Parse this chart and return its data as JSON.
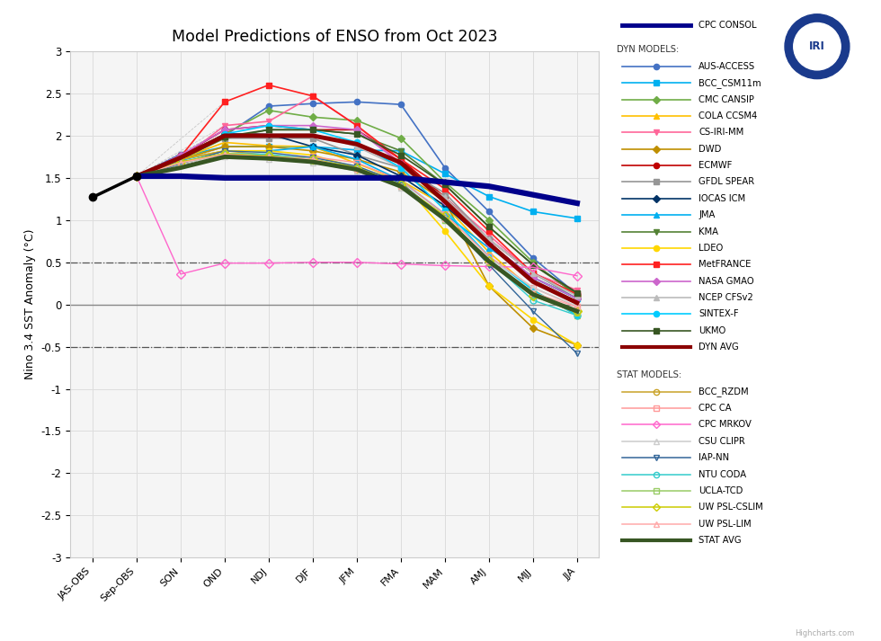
{
  "title": "Model Predictions of ENSO from Oct 2023",
  "ylabel": "Nino 3.4 SST Anomaly (°C)",
  "xtick_labels": [
    "JAS-OBS",
    "Sep-OBS",
    "SON",
    "OND",
    "NDJ",
    "DJF",
    "JFM",
    "FMA",
    "MAM",
    "AMJ",
    "MJJ",
    "JJA"
  ],
  "ylim": [
    -3,
    3
  ],
  "yticks": [
    -3,
    -2.5,
    -2,
    -1.5,
    -1,
    -0.5,
    0,
    0.5,
    1,
    1.5,
    2,
    2.5,
    3
  ],
  "obs": {
    "x": [
      0,
      1
    ],
    "y": [
      1.27,
      1.52
    ],
    "color": "#000000",
    "linewidth": 2.5,
    "marker": "o",
    "markersize": 6
  },
  "cpc_consol": {
    "color": "#00008b",
    "linewidth": 4.5,
    "x": [
      1,
      2,
      3,
      4,
      5,
      6,
      7,
      8,
      9,
      10,
      11
    ],
    "y": [
      1.52,
      1.52,
      1.5,
      1.5,
      1.5,
      1.5,
      1.5,
      1.45,
      1.4,
      1.3,
      1.2
    ]
  },
  "dyn_models": [
    {
      "name": "AUS-ACCESS",
      "color": "#4472c4",
      "marker": "o",
      "x": [
        1,
        2,
        3,
        4,
        5,
        6,
        7,
        8,
        9,
        10,
        11
      ],
      "y": [
        1.52,
        1.78,
        2.0,
        2.35,
        2.38,
        2.4,
        2.37,
        1.62,
        1.1,
        0.55,
        0.12
      ]
    },
    {
      "name": "BCC_CSM11m",
      "color": "#00b0f0",
      "marker": "s",
      "x": [
        1,
        2,
        3,
        4,
        5,
        6,
        7,
        8,
        9,
        10,
        11
      ],
      "y": [
        1.52,
        1.75,
        1.87,
        1.87,
        1.87,
        1.83,
        1.82,
        1.55,
        1.28,
        1.1,
        1.02
      ]
    },
    {
      "name": "CMC CANSIP",
      "color": "#70ad47",
      "marker": "D",
      "x": [
        1,
        2,
        3,
        4,
        5,
        6,
        7,
        8,
        9,
        10,
        11
      ],
      "y": [
        1.52,
        1.74,
        2.02,
        2.3,
        2.22,
        2.18,
        1.97,
        1.45,
        1.0,
        0.5,
        0.1
      ]
    },
    {
      "name": "COLA CCSM4",
      "color": "#ffc000",
      "marker": "^",
      "x": [
        1,
        2,
        3,
        4,
        5,
        6,
        7,
        8,
        9,
        10,
        11
      ],
      "y": [
        1.52,
        1.73,
        1.92,
        1.88,
        1.87,
        1.67,
        1.47,
        1.17,
        0.62,
        0.17,
        -0.13
      ]
    },
    {
      "name": "CS-IRI-MM",
      "color": "#ff6699",
      "marker": "v",
      "x": [
        1,
        2,
        3,
        4,
        5,
        6,
        7,
        8,
        9,
        10,
        11
      ],
      "y": [
        1.52,
        1.72,
        2.12,
        2.17,
        2.47,
        2.12,
        1.67,
        1.27,
        0.82,
        0.37,
        0.17
      ]
    },
    {
      "name": "DWD",
      "color": "#bf8f00",
      "marker": "D",
      "x": [
        1,
        2,
        3,
        4,
        5,
        6,
        7,
        8,
        9,
        10,
        11
      ],
      "y": [
        1.52,
        1.72,
        1.87,
        1.87,
        1.82,
        1.72,
        1.57,
        1.22,
        0.22,
        -0.28,
        -0.48
      ]
    },
    {
      "name": "ECMWF",
      "color": "#c00000",
      "marker": "o",
      "x": [
        1,
        2,
        3,
        4,
        5,
        6,
        7,
        8,
        9,
        10,
        11
      ],
      "y": [
        1.52,
        1.76,
        2.07,
        2.12,
        2.07,
        2.07,
        1.72,
        1.27,
        0.77,
        0.37,
        0.12
      ]
    },
    {
      "name": "GFDL SPEAR",
      "color": "#969696",
      "marker": "s",
      "x": [
        1,
        2,
        3,
        4,
        5,
        6,
        7,
        8,
        9,
        10,
        11
      ],
      "y": [
        1.52,
        1.73,
        1.97,
        1.97,
        1.97,
        1.77,
        1.62,
        1.32,
        0.77,
        0.37,
        0.07
      ]
    },
    {
      "name": "IOCAS ICM",
      "color": "#003366",
      "marker": "D",
      "x": [
        1,
        2,
        3,
        4,
        5,
        6,
        7,
        8,
        9,
        10,
        11
      ],
      "y": [
        1.52,
        1.73,
        2.02,
        2.02,
        1.87,
        1.77,
        1.52,
        1.17,
        0.72,
        0.32,
        0.07
      ]
    },
    {
      "name": "JMA",
      "color": "#00b0f0",
      "marker": "^",
      "x": [
        1,
        2,
        3,
        4,
        5,
        6,
        7,
        8,
        9,
        10,
        11
      ],
      "y": [
        1.52,
        1.71,
        1.82,
        1.82,
        1.87,
        1.72,
        1.47,
        1.07,
        0.67,
        0.32,
        0.07
      ]
    },
    {
      "name": "KMA",
      "color": "#548235",
      "marker": "v",
      "x": [
        1,
        2,
        3,
        4,
        5,
        6,
        7,
        8,
        9,
        10,
        11
      ],
      "y": [
        1.52,
        1.72,
        1.97,
        2.07,
        2.07,
        2.02,
        1.82,
        1.42,
        0.92,
        0.47,
        0.12
      ]
    },
    {
      "name": "LDEO",
      "color": "#ffd700",
      "marker": "o",
      "x": [
        1,
        2,
        3,
        4,
        5,
        6,
        7,
        8,
        9,
        10,
        11
      ],
      "y": [
        1.52,
        1.72,
        1.82,
        1.82,
        1.77,
        1.62,
        1.47,
        0.87,
        0.22,
        -0.18,
        -0.48
      ]
    },
    {
      "name": "MetFRANCE",
      "color": "#ff2020",
      "marker": "s",
      "x": [
        1,
        2,
        3,
        4,
        5,
        6,
        7,
        8,
        9,
        10,
        11
      ],
      "y": [
        1.52,
        1.75,
        2.4,
        2.6,
        2.47,
        2.12,
        1.72,
        1.37,
        0.87,
        0.37,
        0.12
      ]
    },
    {
      "name": "NASA GMAO",
      "color": "#cc66cc",
      "marker": "D",
      "x": [
        1,
        2,
        3,
        4,
        5,
        6,
        7,
        8,
        9,
        10,
        11
      ],
      "y": [
        1.52,
        1.77,
        2.07,
        2.12,
        2.12,
        2.07,
        1.67,
        1.22,
        0.72,
        0.32,
        0.07
      ]
    },
    {
      "name": "NCEP CFSv2",
      "color": "#bbbbbb",
      "marker": "^",
      "x": [
        1,
        2,
        3,
        4,
        5,
        6,
        7,
        8,
        9,
        10,
        11
      ],
      "y": [
        1.52,
        1.72,
        2.0,
        2.02,
        2.02,
        1.87,
        1.62,
        1.27,
        0.77,
        0.37,
        0.1
      ]
    },
    {
      "name": "SINTEX-F",
      "color": "#00ccff",
      "marker": "o",
      "x": [
        1,
        2,
        3,
        4,
        5,
        6,
        7,
        8,
        9,
        10,
        11
      ],
      "y": [
        1.52,
        1.73,
        2.02,
        2.12,
        2.07,
        1.92,
        1.62,
        1.12,
        0.57,
        0.17,
        -0.13
      ]
    },
    {
      "name": "UKMO",
      "color": "#375623",
      "marker": "s",
      "x": [
        1,
        2,
        3,
        4,
        5,
        6,
        7,
        8,
        9,
        10,
        11
      ],
      "y": [
        1.52,
        1.72,
        1.99,
        2.07,
        2.07,
        2.02,
        1.77,
        1.42,
        0.92,
        0.47,
        0.14
      ]
    },
    {
      "name": "DYN AVG",
      "color": "#8b0000",
      "marker": null,
      "linewidth": 3.5,
      "x": [
        1,
        2,
        3,
        4,
        5,
        6,
        7,
        8,
        9,
        10,
        11
      ],
      "y": [
        1.52,
        1.74,
        2.0,
        2.0,
        2.0,
        1.9,
        1.68,
        1.22,
        0.72,
        0.27,
        0.02
      ]
    }
  ],
  "stat_models": [
    {
      "name": "BCC_RZDM",
      "color": "#c9a227",
      "marker": "o",
      "x": [
        1,
        2,
        3,
        4,
        5,
        6,
        7,
        8,
        9,
        10,
        11
      ],
      "y": [
        1.52,
        1.72,
        1.82,
        1.77,
        1.72,
        1.62,
        1.42,
        1.02,
        0.52,
        0.12,
        -0.08
      ]
    },
    {
      "name": "CPC CA",
      "color": "#ff9999",
      "marker": "s",
      "x": [
        1,
        2,
        3,
        4,
        5,
        6,
        7,
        8,
        9,
        10,
        11
      ],
      "y": [
        1.52,
        1.68,
        1.78,
        1.75,
        1.75,
        1.68,
        1.47,
        1.07,
        0.57,
        0.2,
        -0.03
      ]
    },
    {
      "name": "CPC MRKOV",
      "color": "#ff66cc",
      "marker": "D",
      "x": [
        1,
        2,
        3,
        4,
        5,
        6,
        7,
        8,
        9,
        10,
        11
      ],
      "y": [
        1.52,
        0.36,
        0.49,
        0.49,
        0.5,
        0.5,
        0.48,
        0.46,
        0.45,
        0.44,
        0.34
      ]
    },
    {
      "name": "CSU CLIPR",
      "color": "#cccccc",
      "marker": "^",
      "x": [
        1,
        2,
        3,
        4,
        5,
        6,
        7,
        8,
        9,
        10,
        11
      ],
      "y": [
        1.52,
        1.68,
        1.75,
        1.72,
        1.68,
        1.58,
        1.38,
        1.0,
        0.55,
        0.2,
        -0.02
      ]
    },
    {
      "name": "IAP-NN",
      "color": "#336699",
      "marker": "v",
      "x": [
        1,
        2,
        3,
        4,
        5,
        6,
        7,
        8,
        9,
        10,
        11
      ],
      "y": [
        1.52,
        1.67,
        1.82,
        1.8,
        1.74,
        1.64,
        1.44,
        1.02,
        0.47,
        -0.08,
        -0.58
      ]
    },
    {
      "name": "NTU CODA",
      "color": "#33cccc",
      "marker": "o",
      "x": [
        1,
        2,
        3,
        4,
        5,
        6,
        7,
        8,
        9,
        10,
        11
      ],
      "y": [
        1.52,
        1.69,
        1.79,
        1.78,
        1.72,
        1.62,
        1.42,
        1.02,
        0.52,
        0.05,
        -0.13
      ]
    },
    {
      "name": "UCLA-TCD",
      "color": "#99cc66",
      "marker": "s",
      "x": [
        1,
        2,
        3,
        4,
        5,
        6,
        7,
        8,
        9,
        10,
        11
      ],
      "y": [
        1.52,
        1.68,
        1.78,
        1.76,
        1.7,
        1.6,
        1.4,
        1.0,
        0.5,
        0.1,
        -0.1
      ]
    },
    {
      "name": "UW PSL-CSLIM",
      "color": "#cccc00",
      "marker": "D",
      "x": [
        1,
        2,
        3,
        4,
        5,
        6,
        7,
        8,
        9,
        10,
        11
      ],
      "y": [
        1.52,
        1.69,
        1.79,
        1.76,
        1.72,
        1.62,
        1.42,
        1.05,
        0.52,
        0.1,
        -0.08
      ]
    },
    {
      "name": "UW PSL-LIM",
      "color": "#ffaaaa",
      "marker": "^",
      "x": [
        1,
        2,
        3,
        4,
        5,
        6,
        7,
        8,
        9,
        10,
        11
      ],
      "y": [
        1.52,
        1.68,
        1.78,
        1.75,
        1.72,
        1.6,
        1.4,
        1.02,
        0.52,
        0.14,
        -0.03
      ]
    },
    {
      "name": "STAT AVG",
      "color": "#375623",
      "marker": null,
      "linewidth": 3.5,
      "x": [
        1,
        2,
        3,
        4,
        5,
        6,
        7,
        8,
        9,
        10,
        11
      ],
      "y": [
        1.52,
        1.62,
        1.75,
        1.73,
        1.69,
        1.6,
        1.4,
        1.01,
        0.51,
        0.12,
        -0.08
      ]
    }
  ]
}
